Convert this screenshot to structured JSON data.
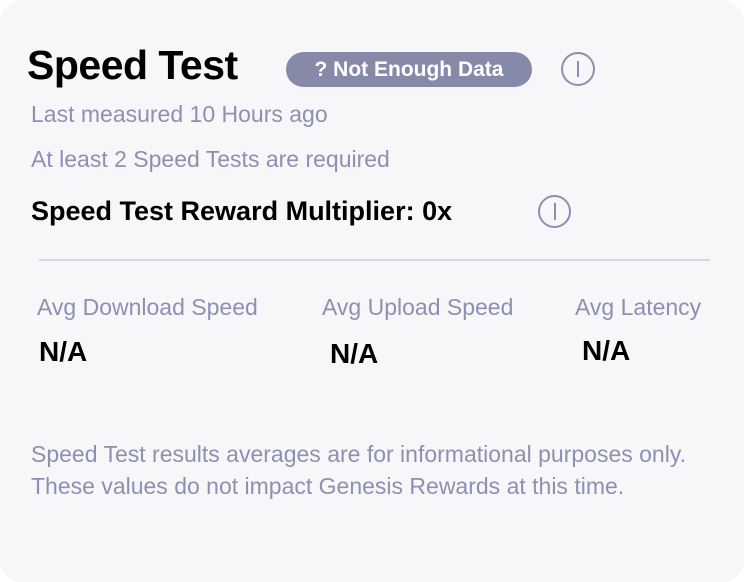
{
  "card": {
    "title": "Speed Test",
    "status_badge": "? Not Enough Data",
    "last_measured": "Last measured 10 Hours ago",
    "requirement": "At least 2 Speed Tests are required",
    "multiplier": "Speed Test Reward Multiplier: 0x",
    "stats": [
      {
        "label": "Avg Download Speed",
        "value": "N/A"
      },
      {
        "label": "Avg Upload Speed",
        "value": "N/A"
      },
      {
        "label": "Avg Latency",
        "value": "N/A"
      }
    ],
    "note": "Speed Test results averages are for informational purposes only. These values do not impact Genesis Rewards at this time."
  },
  "colors": {
    "badge": "#8789a9",
    "muted_text": "#8d90b2",
    "background": "#f7f6f9"
  }
}
